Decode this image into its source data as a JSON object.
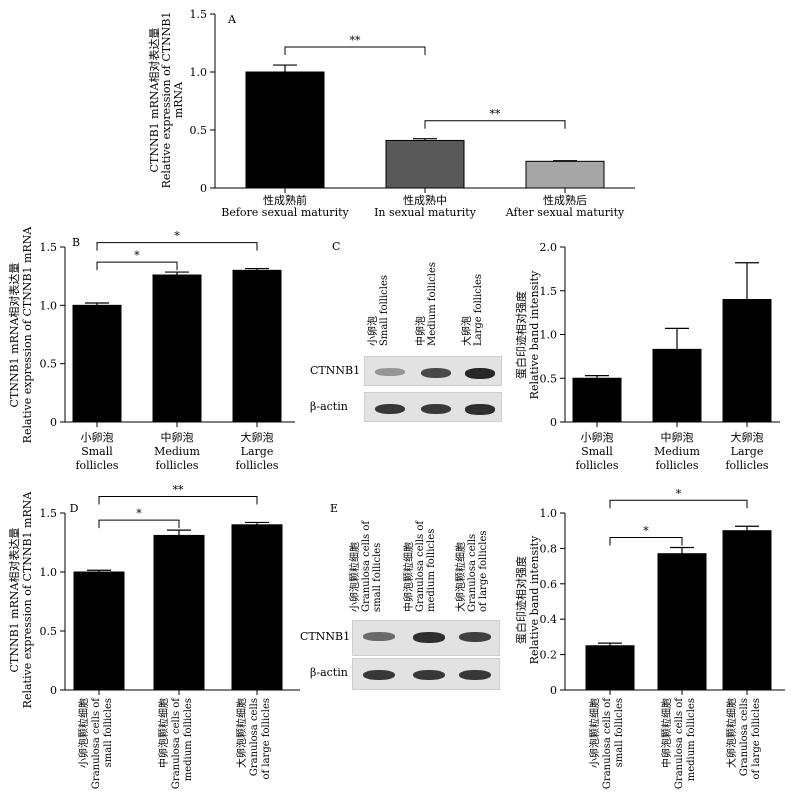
{
  "chart_data": [
    {
      "type": "bar",
      "panel": "A",
      "ylabel_cn": "CTNNB1 mRNA相对表达量",
      "ylabel_en": "Relative expression of CTNNB1",
      "ylabel_en2": "mRNA",
      "ylim": [
        0,
        1.5
      ],
      "yticks": [
        "0",
        "0.5",
        "1.0",
        "1.5"
      ],
      "categories_cn": [
        "性成熟前",
        "性成熟中",
        "性成熟后"
      ],
      "categories_en": [
        "Before sexual maturity",
        "In sexual maturity",
        "After sexual maturity"
      ],
      "values": [
        1.0,
        0.41,
        0.23
      ],
      "errors": [
        0.06,
        0.015,
        0.005
      ],
      "colors": [
        "#000000",
        "#595959",
        "#a6a6a6"
      ],
      "significance": [
        {
          "from": 0,
          "to": 1,
          "label": "**"
        },
        {
          "from": 1,
          "to": 2,
          "label": "**"
        }
      ]
    },
    {
      "type": "bar",
      "panel": "B",
      "ylabel_cn": "CTNNB1 mRNA相对表达量",
      "ylabel_en": "Relative expression of CTNNB1 mRNA",
      "ylim": [
        0,
        1.5
      ],
      "yticks": [
        "0",
        "0.5",
        "1.0",
        "1.5"
      ],
      "categories_cn": [
        "小卵泡",
        "中卵泡",
        "大卵泡"
      ],
      "categories_en": [
        [
          "Small",
          "follicles"
        ],
        [
          "Medium",
          "follicles"
        ],
        [
          "Large",
          "follicles"
        ]
      ],
      "values": [
        1.0,
        1.26,
        1.3
      ],
      "errors": [
        0.02,
        0.025,
        0.015
      ],
      "significance": [
        {
          "from": 0,
          "to": 1,
          "label": "*"
        },
        {
          "from": 0,
          "to": 2,
          "label": "*"
        }
      ]
    },
    {
      "type": "bar",
      "panel": "C",
      "ylabel_cn": "蛋白印迹相对强度",
      "ylabel_en": "Relative band intensity",
      "ylim": [
        0,
        2.0
      ],
      "yticks": [
        "0",
        "0.5",
        "1.0",
        "1.5",
        "2.0"
      ],
      "categories_cn": [
        "小卵泡",
        "中卵泡",
        "大卵泡"
      ],
      "categories_en": [
        [
          "Small",
          "follicles"
        ],
        [
          "Medium",
          "follicles"
        ],
        [
          "Large",
          "follicles"
        ]
      ],
      "values": [
        0.5,
        0.83,
        1.4
      ],
      "errors": [
        0.03,
        0.24,
        0.42
      ],
      "significance": []
    },
    {
      "type": "bar",
      "panel": "D",
      "ylabel_cn": "CTNNB1 mRNA相对表达量",
      "ylabel_en": "Relative expression of CTNNB1 mRNA",
      "ylim": [
        0,
        1.5
      ],
      "yticks": [
        "0",
        "0.5",
        "1.0",
        "1.5"
      ],
      "categories_cn": [
        "小卵泡颗粒细胞",
        "中卵泡颗粒细胞",
        "大卵泡颗粒细胞"
      ],
      "categories_en": [
        [
          "Granulosa cells of",
          "small follicles"
        ],
        [
          "Granulosa cells of",
          "medium follicles"
        ],
        [
          "Granulosa cells",
          "of large follicles"
        ]
      ],
      "values": [
        1.0,
        1.31,
        1.4
      ],
      "errors": [
        0.015,
        0.045,
        0.02
      ],
      "significance": [
        {
          "from": 0,
          "to": 1,
          "label": "*"
        },
        {
          "from": 0,
          "to": 2,
          "label": "**"
        }
      ]
    },
    {
      "type": "bar",
      "panel": "E",
      "ylabel_cn": "蛋白印迹相对强度",
      "ylabel_en": "Relative band intensity",
      "ylim": [
        0,
        1.0
      ],
      "yticks": [
        "0",
        "0.2",
        "0.4",
        "0.6",
        "0.8",
        "1.0"
      ],
      "categories_cn": [
        "小卵泡颗粒细胞",
        "中卵泡颗粒细胞",
        "大卵泡颗粒细胞"
      ],
      "categories_en": [
        [
          "Granulosa cells of",
          "small follicles"
        ],
        [
          "Granulosa cells of",
          "medium follicles"
        ],
        [
          "Granulosa cells",
          "of large follicles"
        ]
      ],
      "values": [
        0.25,
        0.77,
        0.9
      ],
      "errors": [
        0.015,
        0.035,
        0.025
      ],
      "significance": [
        {
          "from": 0,
          "to": 1,
          "label": "*"
        },
        {
          "from": 0,
          "to": 2,
          "label": "*"
        }
      ]
    }
  ],
  "blots": [
    {
      "panel": "C",
      "lanes": [
        {
          "cn": "小卵泡",
          "en": "Small follicles"
        },
        {
          "cn": "中卵泡",
          "en": "Medium follicles"
        },
        {
          "cn": "大卵泡",
          "en": "Large follicles"
        }
      ],
      "rows": [
        {
          "label": "CTNNB1",
          "intensity": [
            0.3,
            0.75,
            0.95
          ]
        },
        {
          "label": "β-actin",
          "intensity": [
            0.85,
            0.85,
            0.9
          ]
        }
      ]
    },
    {
      "panel": "E",
      "lanes": [
        {
          "cn": "小卵泡颗粒细胞",
          "en1": "Granulosa cells of",
          "en2": "small follicles"
        },
        {
          "cn": "中卵泡颗粒细胞",
          "en1": "Granulosa cells of",
          "en2": "medium follicles"
        },
        {
          "cn": "大卵泡颗粒细胞",
          "en1": "Granulosa cells",
          "en2": "of large follicles"
        }
      ],
      "rows": [
        {
          "label": "CTNNB1",
          "intensity": [
            0.55,
            0.9,
            0.8
          ]
        },
        {
          "label": "β-actin",
          "intensity": [
            0.85,
            0.85,
            0.85
          ]
        }
      ]
    }
  ]
}
